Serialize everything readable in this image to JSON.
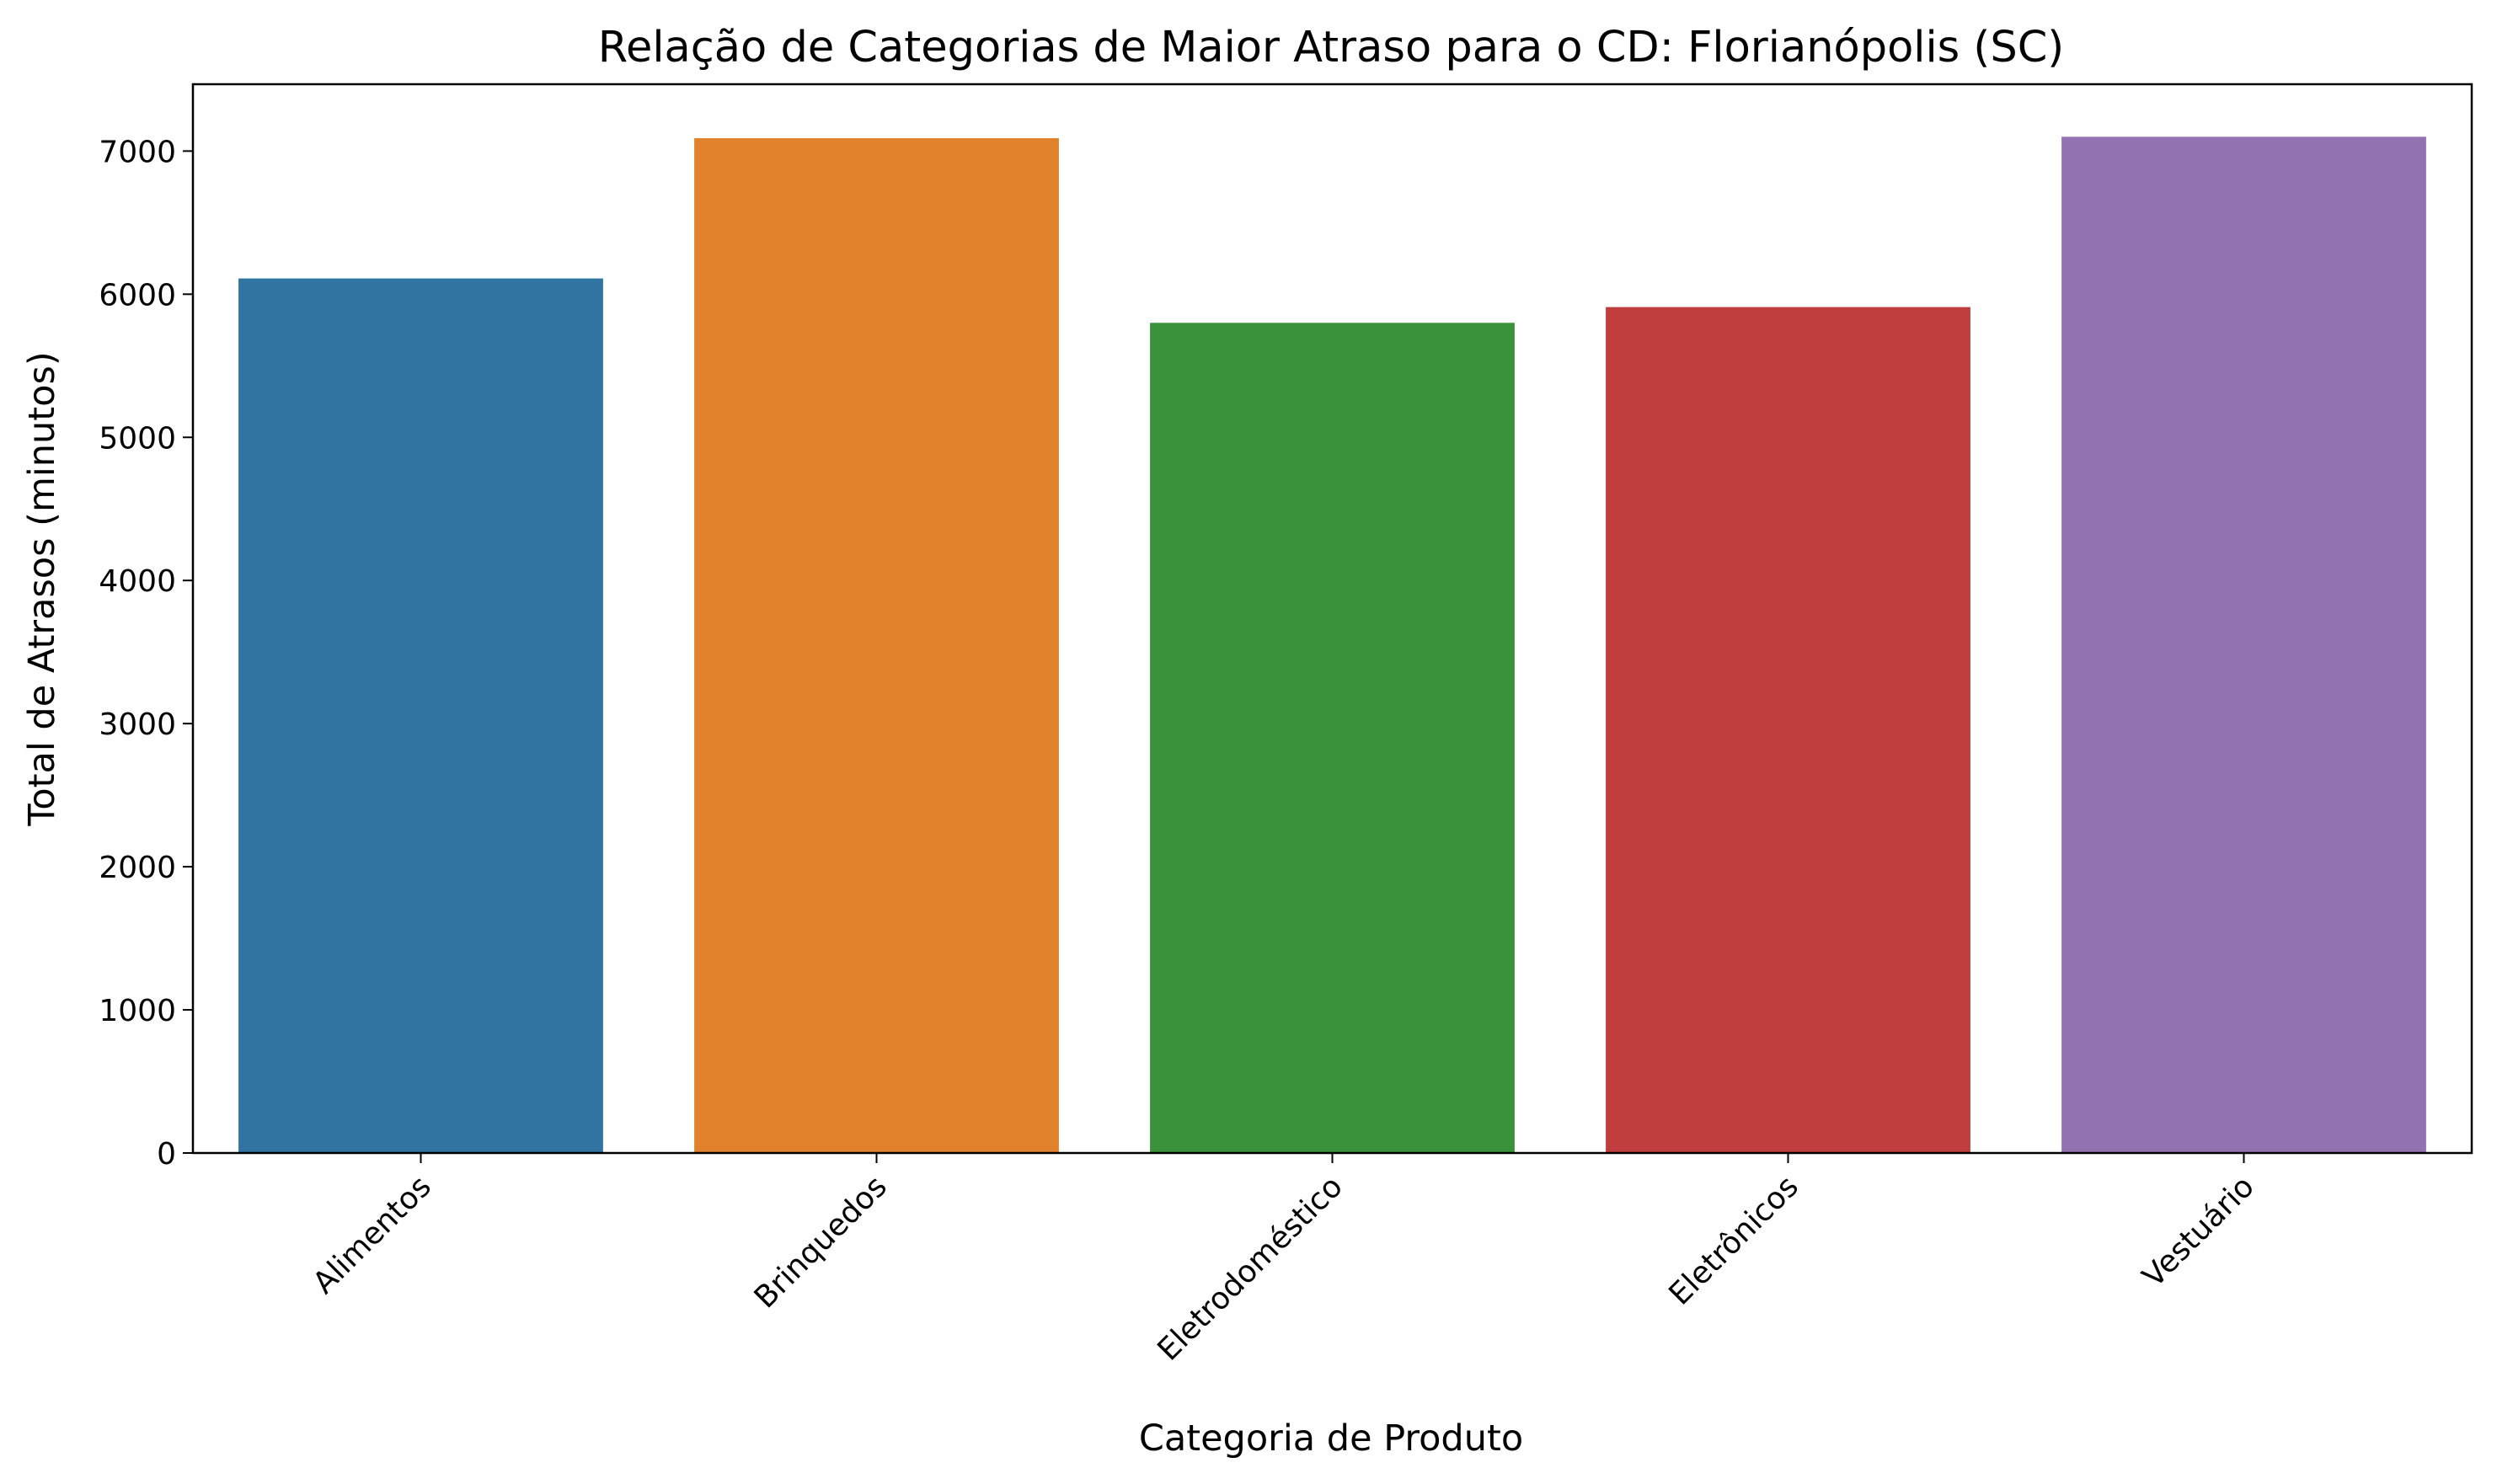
{
  "chart_data": {
    "type": "bar",
    "title": "Relação de Categorias de Maior Atraso para o CD: Florianópolis (SC)",
    "xlabel": "Categoria de Produto",
    "ylabel": "Total de Atrasos (minutos)",
    "categories": [
      "Alimentos",
      "Brinquedos",
      "Eletrodoméstico",
      "Eletrônicos",
      "Vestuário"
    ],
    "values": [
      6110,
      7090,
      5800,
      5910,
      7100
    ],
    "colors": [
      "#3274a1",
      "#e1812c",
      "#3a923a",
      "#c03d3e",
      "#9372b2"
    ],
    "ylim": [
      0,
      7467
    ],
    "yticks": [
      0,
      1000,
      2000,
      3000,
      4000,
      5000,
      6000,
      7000
    ],
    "grid": false,
    "legend": "none"
  }
}
